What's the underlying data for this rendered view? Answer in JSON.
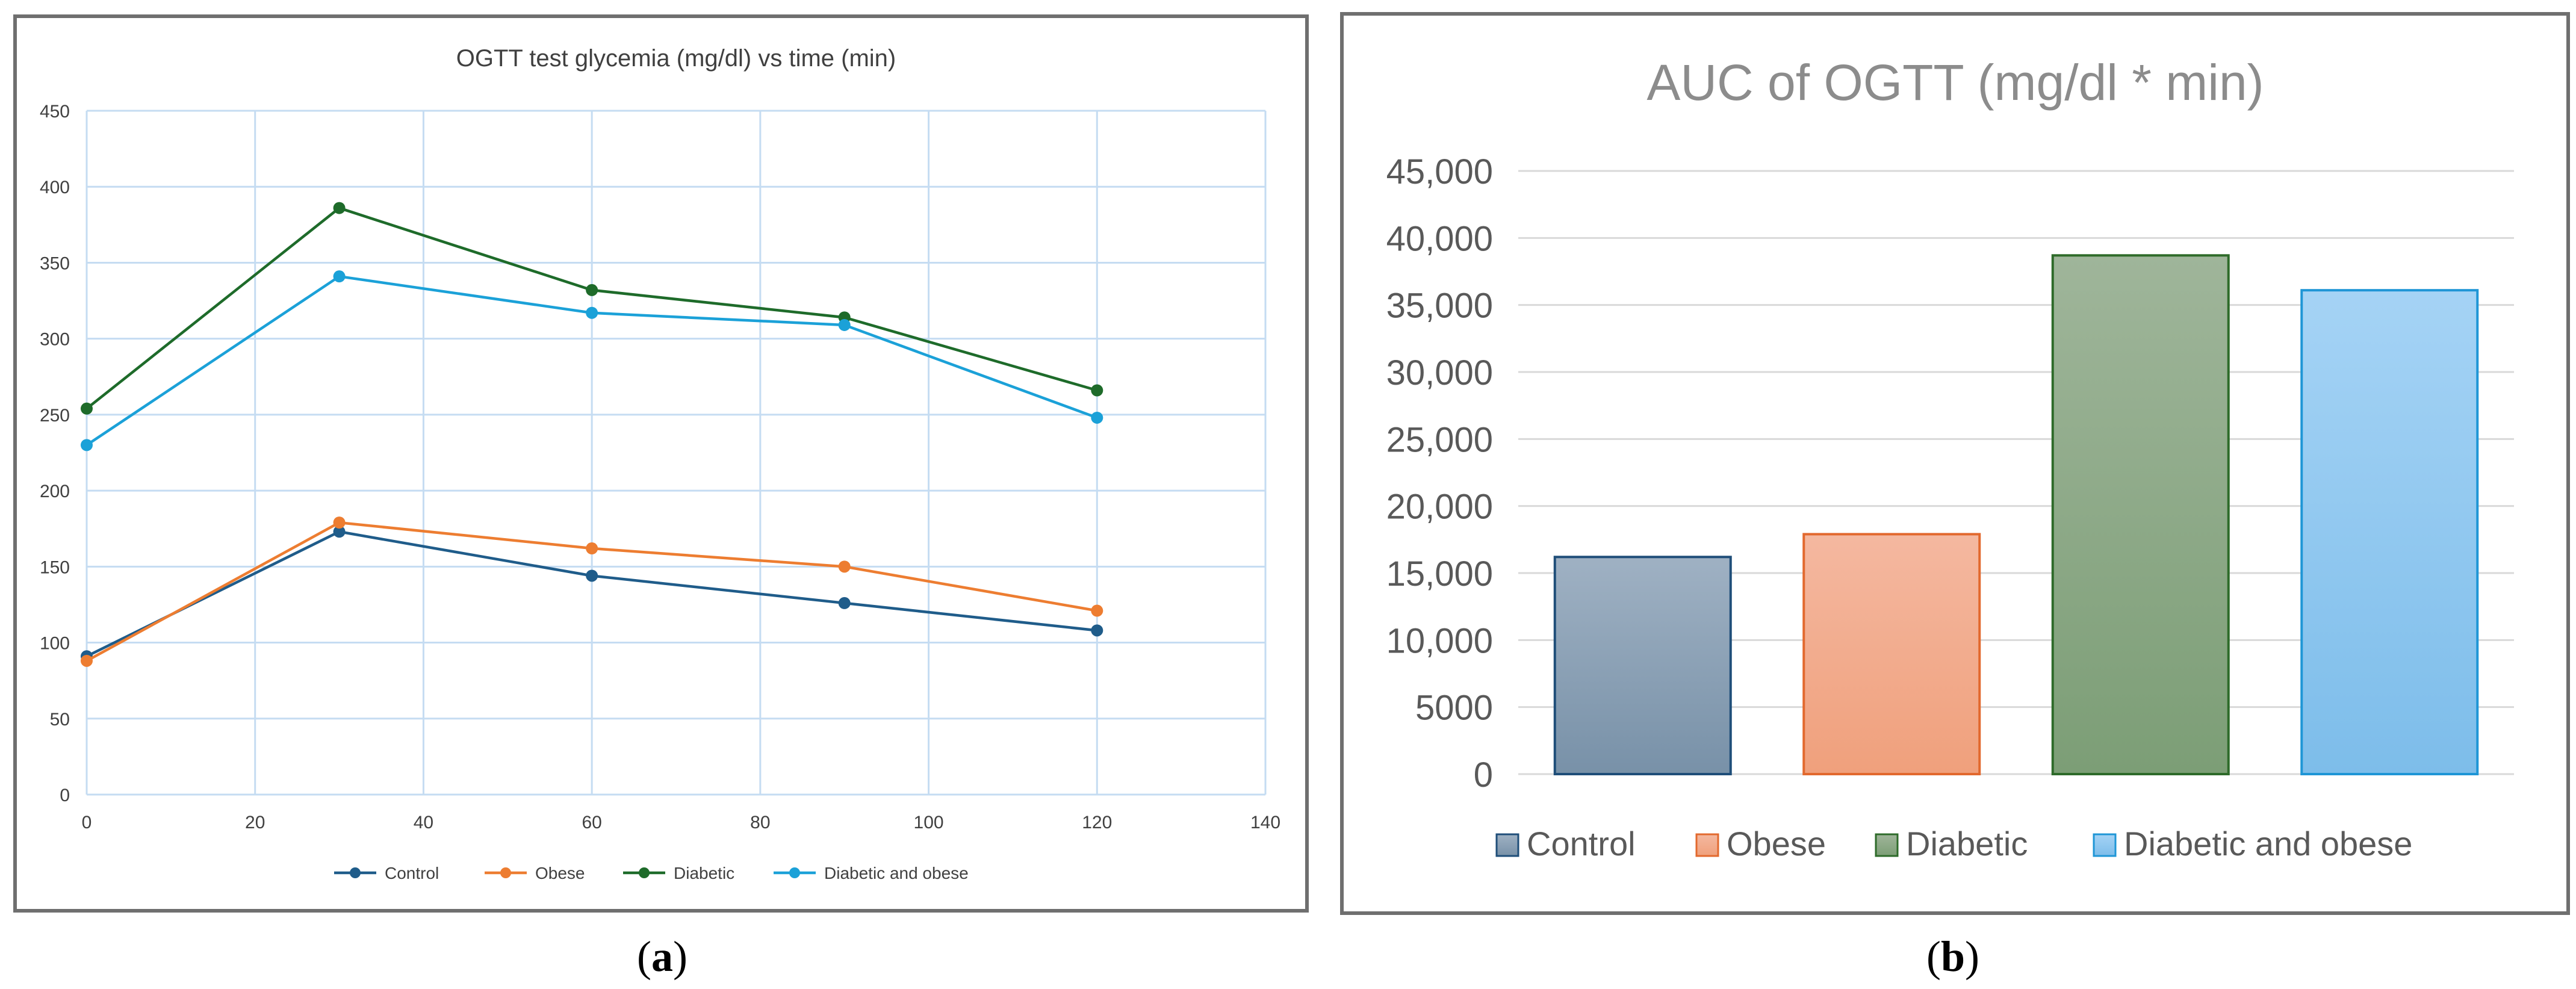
{
  "captions": {
    "a": "a",
    "b": "b"
  },
  "chart_data": [
    {
      "type": "line",
      "title": "OGTT test glycemia (mg/dl) vs time (min)",
      "xlabel": "",
      "ylabel": "",
      "xlim": [
        0,
        140
      ],
      "ylim": [
        0,
        450
      ],
      "xticks": [
        0,
        20,
        40,
        60,
        80,
        100,
        120,
        140
      ],
      "yticks": [
        0,
        50,
        100,
        150,
        200,
        250,
        300,
        350,
        400,
        450
      ],
      "grid": true,
      "legend_position": "bottom",
      "x": [
        0,
        30,
        60,
        90,
        120
      ],
      "series": [
        {
          "name": "Control",
          "color": "#1f5c8a",
          "values": [
            91,
            173,
            144,
            126,
            108
          ]
        },
        {
          "name": "Obese",
          "color": "#ed7d31",
          "values": [
            88,
            179,
            162,
            150,
            121
          ]
        },
        {
          "name": "Diabetic",
          "color": "#1e6b2a",
          "values": [
            254,
            386,
            332,
            314,
            266
          ]
        },
        {
          "name": "Diabetic and obese",
          "color": "#1ba1d8",
          "values": [
            230,
            341,
            317,
            309,
            248
          ]
        }
      ]
    },
    {
      "type": "bar",
      "title": "AUC of OGTT (mg/dl * min)",
      "xlabel": "",
      "ylabel": "",
      "ylim": [
        0,
        45000
      ],
      "yticks": [
        0,
        5000,
        10000,
        15000,
        20000,
        25000,
        30000,
        35000,
        40000,
        45000
      ],
      "ytick_labels": [
        "0",
        "5000",
        "10,000",
        "15,000",
        "20,000",
        "25,000",
        "30,000",
        "35,000",
        "40,000",
        "45,000"
      ],
      "grid": true,
      "legend_position": "bottom",
      "categories": [
        "Control",
        "Obese",
        "Diabetic",
        "Diabetic and obese"
      ],
      "values": [
        16200,
        17900,
        38700,
        36100
      ],
      "colors": [
        {
          "top": "#9fb1c3",
          "bottom": "#7891a8",
          "stroke": "#1f4e79"
        },
        {
          "top": "#f4b8a0",
          "bottom": "#f0a07c",
          "stroke": "#e2692e"
        },
        {
          "top": "#9fb59a",
          "bottom": "#7c9e76",
          "stroke": "#2e6b2a"
        },
        {
          "top": "#a5d3f5",
          "bottom": "#7dbdea",
          "stroke": "#1f96d6"
        }
      ]
    }
  ]
}
